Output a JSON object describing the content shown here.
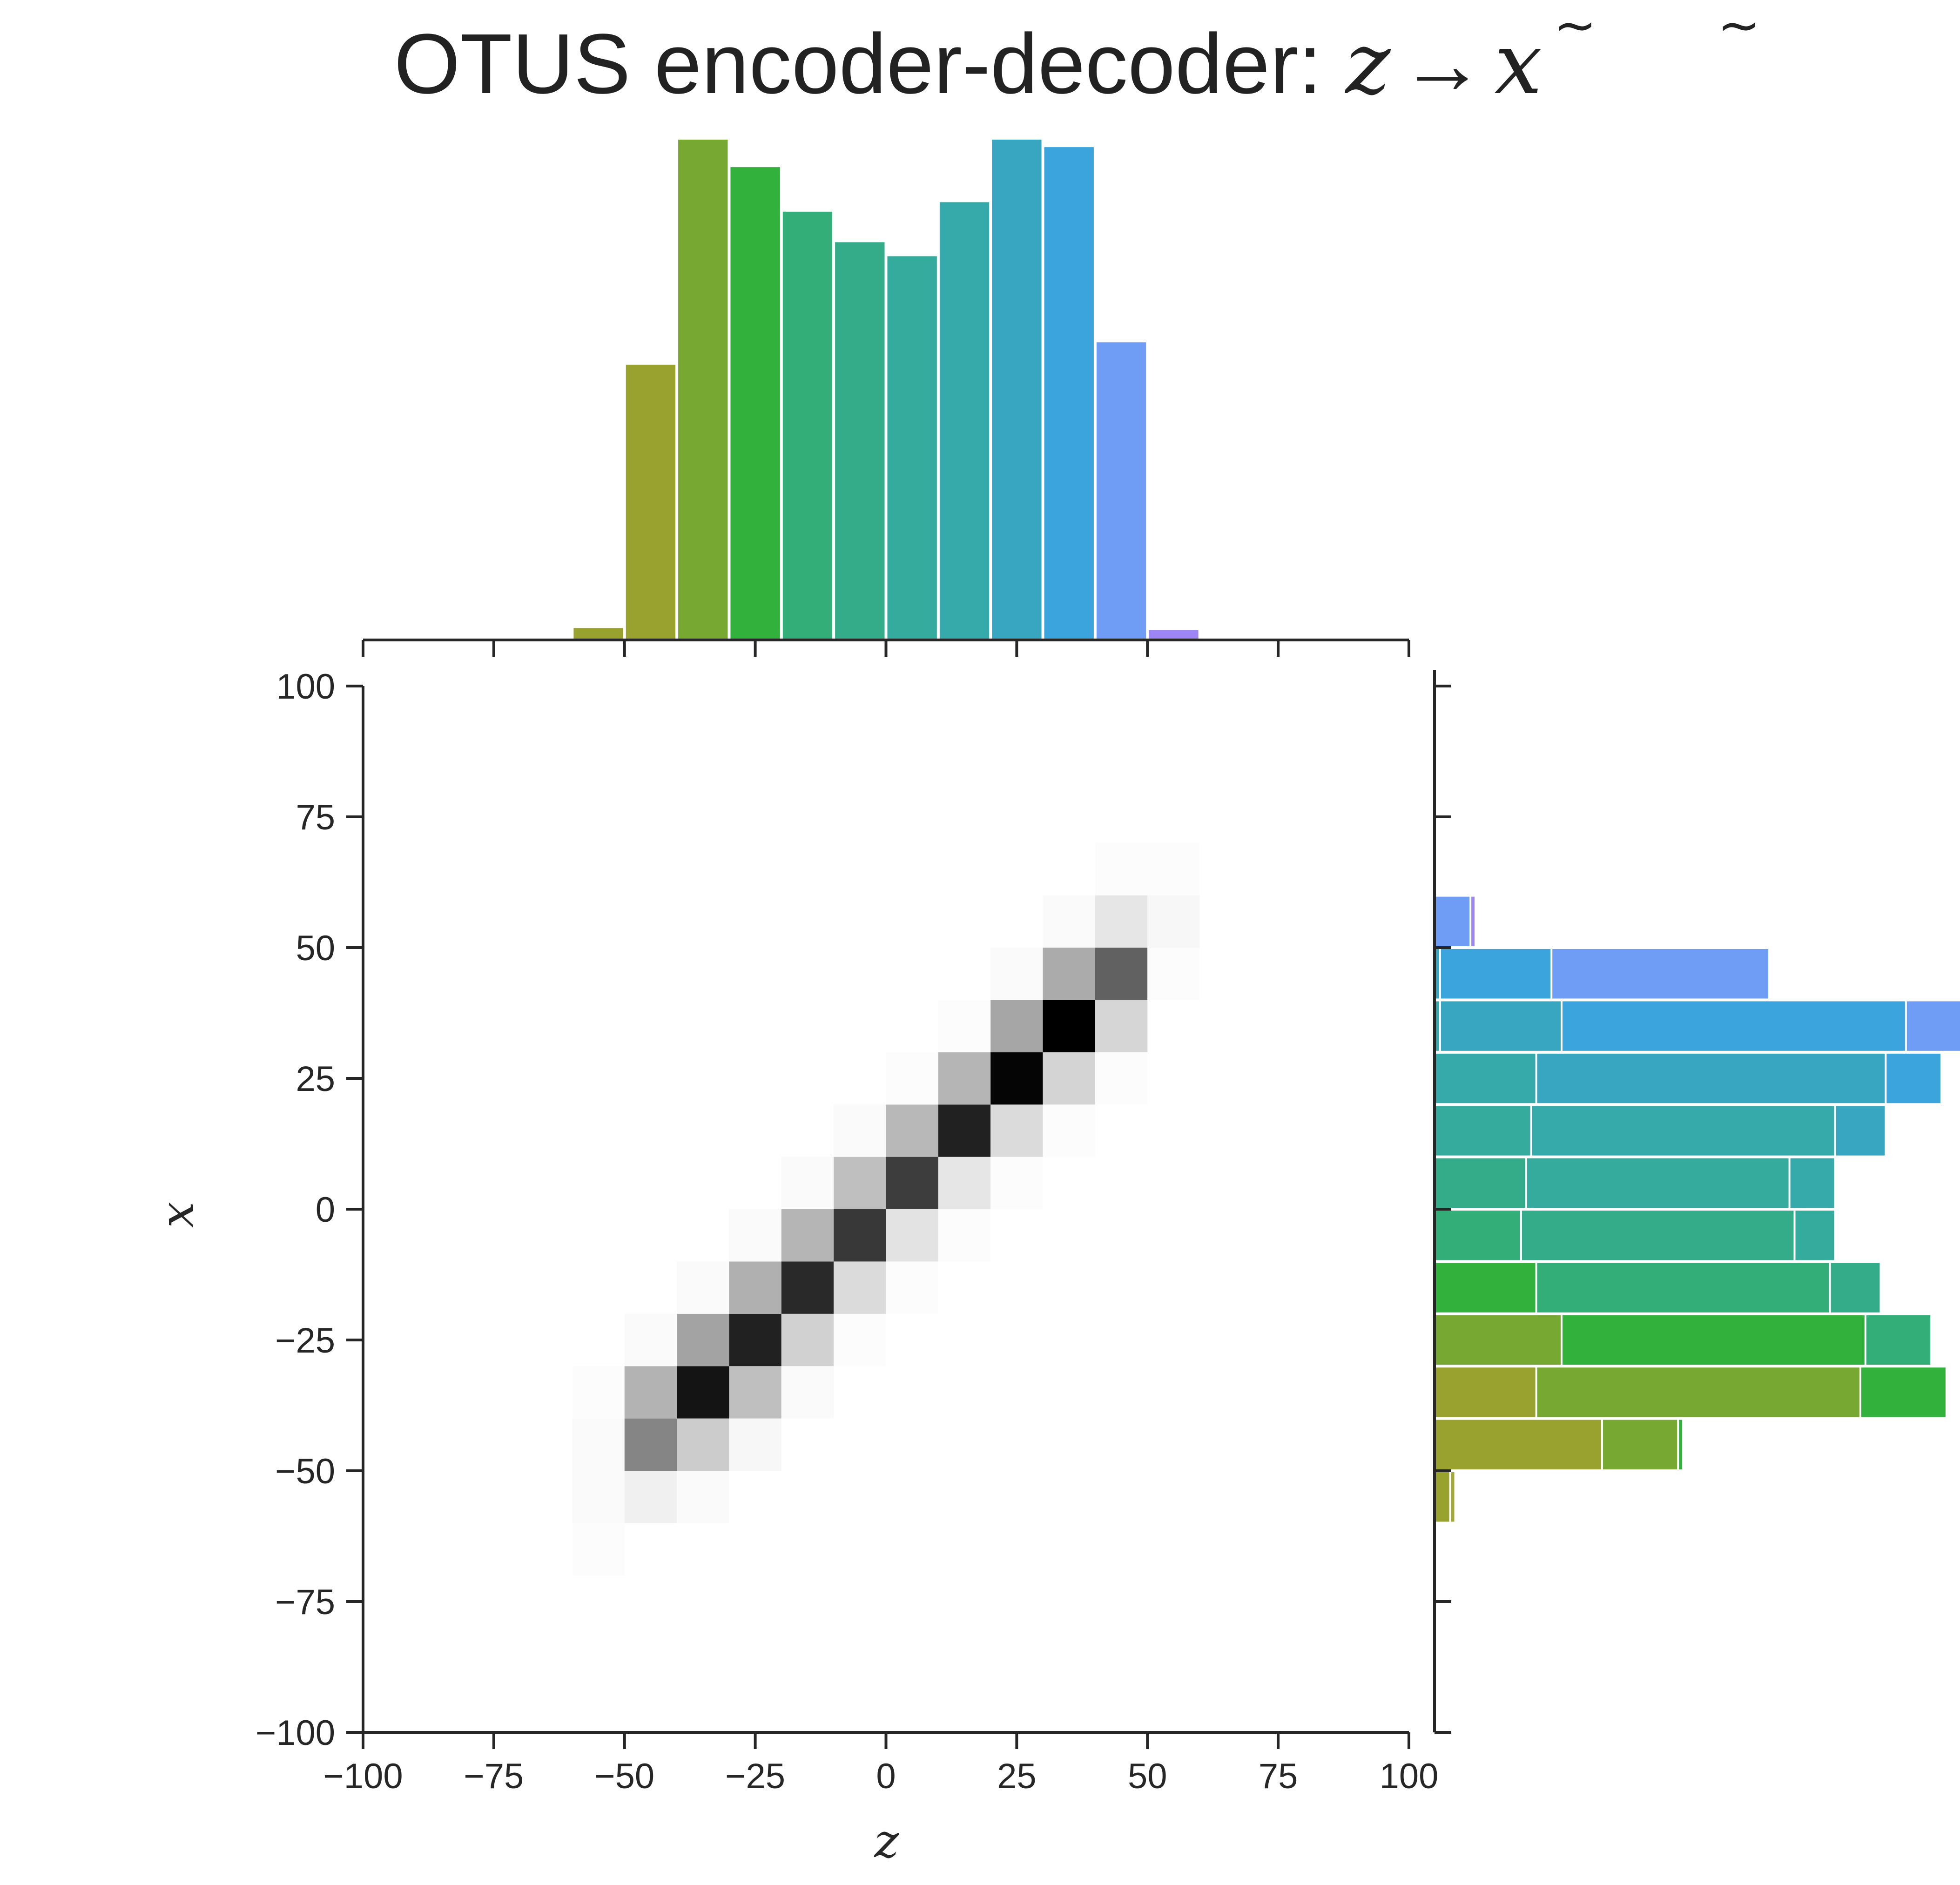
{
  "chart_data": {
    "title": "OTUS encoder-decoder: z̃ → x̃",
    "title_parts": {
      "text": "OTUS encoder-decoder: ",
      "z": "z",
      "arrow": "→",
      "x": "x"
    },
    "type": "heatmap",
    "xlabel": "z",
    "ylabel": "x",
    "xlim": [
      -100,
      100
    ],
    "ylim": [
      -100,
      100
    ],
    "xticks": [
      -100,
      -75,
      -50,
      -25,
      0,
      25,
      50,
      75,
      100
    ],
    "yticks": [
      -100,
      -75,
      -50,
      -25,
      0,
      25,
      50,
      75,
      100
    ],
    "xtick_labels": [
      "−100",
      "−75",
      "−50",
      "−25",
      "0",
      "25",
      "50",
      "75",
      "100"
    ],
    "ytick_labels": [
      "−100",
      "−75",
      "−50",
      "−25",
      "0",
      "25",
      "50",
      "75",
      "100"
    ],
    "grid": false,
    "bin_width": 10,
    "heatmap": [
      {
        "z": -60,
        "x": -70,
        "v": 0.01
      },
      {
        "z": -60,
        "x": -60,
        "v": 0.02
      },
      {
        "z": -60,
        "x": -50,
        "v": 0.02
      },
      {
        "z": -60,
        "x": -40,
        "v": 0.01
      },
      {
        "z": -50,
        "x": -60,
        "v": 0.06
      },
      {
        "z": -50,
        "x": -50,
        "v": 0.48
      },
      {
        "z": -50,
        "x": -40,
        "v": 0.3
      },
      {
        "z": -50,
        "x": -30,
        "v": 0.02
      },
      {
        "z": -40,
        "x": -60,
        "v": 0.02
      },
      {
        "z": -40,
        "x": -50,
        "v": 0.2
      },
      {
        "z": -40,
        "x": -40,
        "v": 0.92
      },
      {
        "z": -40,
        "x": -30,
        "v": 0.36
      },
      {
        "z": -40,
        "x": -20,
        "v": 0.02
      },
      {
        "z": -30,
        "x": -50,
        "v": 0.03
      },
      {
        "z": -30,
        "x": -40,
        "v": 0.25
      },
      {
        "z": -30,
        "x": -30,
        "v": 0.87
      },
      {
        "z": -30,
        "x": -20,
        "v": 0.31
      },
      {
        "z": -30,
        "x": -10,
        "v": 0.02
      },
      {
        "z": -20,
        "x": -40,
        "v": 0.02
      },
      {
        "z": -20,
        "x": -30,
        "v": 0.18
      },
      {
        "z": -20,
        "x": -20,
        "v": 0.84
      },
      {
        "z": -20,
        "x": -10,
        "v": 0.29
      },
      {
        "z": -20,
        "x": 0,
        "v": 0.02
      },
      {
        "z": -10,
        "x": -30,
        "v": 0.01
      },
      {
        "z": -10,
        "x": -20,
        "v": 0.14
      },
      {
        "z": -10,
        "x": -10,
        "v": 0.78
      },
      {
        "z": -10,
        "x": 0,
        "v": 0.25
      },
      {
        "z": -10,
        "x": 10,
        "v": 0.02
      },
      {
        "z": 0,
        "x": -20,
        "v": 0.01
      },
      {
        "z": 0,
        "x": -10,
        "v": 0.11
      },
      {
        "z": 0,
        "x": 0,
        "v": 0.76
      },
      {
        "z": 0,
        "x": 10,
        "v": 0.28
      },
      {
        "z": 0,
        "x": 20,
        "v": 0.01
      },
      {
        "z": 10,
        "x": -10,
        "v": 0.01
      },
      {
        "z": 10,
        "x": 0,
        "v": 0.1
      },
      {
        "z": 10,
        "x": 10,
        "v": 0.87
      },
      {
        "z": 10,
        "x": 20,
        "v": 0.29
      },
      {
        "z": 10,
        "x": 30,
        "v": 0.01
      },
      {
        "z": 20,
        "x": 0,
        "v": 0.01
      },
      {
        "z": 20,
        "x": 10,
        "v": 0.14
      },
      {
        "z": 20,
        "x": 20,
        "v": 0.98
      },
      {
        "z": 20,
        "x": 30,
        "v": 0.35
      },
      {
        "z": 20,
        "x": 40,
        "v": 0.02
      },
      {
        "z": 30,
        "x": 10,
        "v": 0.01
      },
      {
        "z": 30,
        "x": 20,
        "v": 0.17
      },
      {
        "z": 30,
        "x": 30,
        "v": 1.0
      },
      {
        "z": 30,
        "x": 40,
        "v": 0.33
      },
      {
        "z": 30,
        "x": 50,
        "v": 0.02
      },
      {
        "z": 40,
        "x": 20,
        "v": 0.01
      },
      {
        "z": 40,
        "x": 30,
        "v": 0.16
      },
      {
        "z": 40,
        "x": 40,
        "v": 0.62
      },
      {
        "z": 40,
        "x": 50,
        "v": 0.1
      },
      {
        "z": 40,
        "x": 60,
        "v": 0.01
      },
      {
        "z": 50,
        "x": 40,
        "v": 0.01
      },
      {
        "z": 50,
        "x": 50,
        "v": 0.03
      },
      {
        "z": 50,
        "x": 60,
        "v": 0.01
      }
    ],
    "top_histogram": {
      "bin_left_edges": [
        -60,
        -50,
        -40,
        -30,
        -20,
        -10,
        0,
        10,
        20,
        30,
        40,
        50
      ],
      "values": [
        0.024,
        0.55,
        1.0,
        0.945,
        0.856,
        0.795,
        0.767,
        0.875,
        1.0,
        0.985,
        0.595,
        0.02
      ],
      "colors": [
        "#9aa22f",
        "#99a22f",
        "#77a832",
        "#32b23c",
        "#33ae78",
        "#34ac8a",
        "#35ab9d",
        "#36aaaa",
        "#38a6c0",
        "#3ba4dc",
        "#6f9cf5",
        "#9d85f5"
      ]
    },
    "right_histogram": {
      "note": "stacked horizontal bars per x bin",
      "bins": [
        {
          "x": -60,
          "segments": [
            {
              "value": 0.03,
              "color": "#9aa22f"
            },
            {
              "value": 0.01,
              "color": "#a2a83a"
            }
          ]
        },
        {
          "x": -50,
          "segments": [
            {
              "value": 0.33,
              "color": "#99a22f"
            },
            {
              "value": 0.15,
              "color": "#77a832"
            },
            {
              "value": 0.01,
              "color": "#32b23c"
            }
          ]
        },
        {
          "x": -40,
          "segments": [
            {
              "value": 0.2,
              "color": "#99a22f"
            },
            {
              "value": 0.64,
              "color": "#77a832"
            },
            {
              "value": 0.17,
              "color": "#32b23c"
            }
          ]
        },
        {
          "x": -30,
          "segments": [
            {
              "value": 0.25,
              "color": "#77a832"
            },
            {
              "value": 0.6,
              "color": "#32b23c"
            },
            {
              "value": 0.13,
              "color": "#33ae78"
            }
          ]
        },
        {
          "x": -20,
          "segments": [
            {
              "value": 0.2,
              "color": "#32b23c"
            },
            {
              "value": 0.58,
              "color": "#33ae78"
            },
            {
              "value": 0.1,
              "color": "#34ac8a"
            }
          ]
        },
        {
          "x": -10,
          "segments": [
            {
              "value": 0.17,
              "color": "#33ae78"
            },
            {
              "value": 0.54,
              "color": "#34ac8a"
            },
            {
              "value": 0.08,
              "color": "#35ab9d"
            }
          ]
        },
        {
          "x": 0,
          "segments": [
            {
              "value": 0.18,
              "color": "#34ac8a"
            },
            {
              "value": 0.52,
              "color": "#35ab9d"
            },
            {
              "value": 0.09,
              "color": "#36aaaa"
            }
          ]
        },
        {
          "x": 10,
          "segments": [
            {
              "value": 0.19,
              "color": "#35ab9d"
            },
            {
              "value": 0.6,
              "color": "#36aaaa"
            },
            {
              "value": 0.1,
              "color": "#38a6c0"
            }
          ]
        },
        {
          "x": 20,
          "segments": [
            {
              "value": 0.2,
              "color": "#36aaaa"
            },
            {
              "value": 0.69,
              "color": "#38a6c0"
            },
            {
              "value": 0.11,
              "color": "#3ba4dc"
            }
          ]
        },
        {
          "x": 30,
          "segments": [
            {
              "value": 0.01,
              "color": "#36aaaa"
            },
            {
              "value": 0.24,
              "color": "#38a6c0"
            },
            {
              "value": 0.68,
              "color": "#3ba4dc"
            },
            {
              "value": 0.11,
              "color": "#6f9cf5"
            }
          ]
        },
        {
          "x": 40,
          "segments": [
            {
              "value": 0.01,
              "color": "#38a6c0"
            },
            {
              "value": 0.22,
              "color": "#3ba4dc"
            },
            {
              "value": 0.43,
              "color": "#6f9cf5"
            }
          ]
        },
        {
          "x": 50,
          "segments": [
            {
              "value": 0.07,
              "color": "#6f9cf5"
            },
            {
              "value": 0.01,
              "color": "#9d85f5"
            }
          ]
        }
      ]
    }
  }
}
